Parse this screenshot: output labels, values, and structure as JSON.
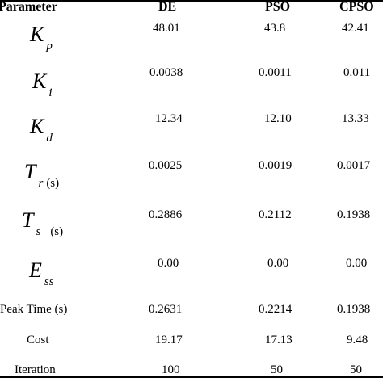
{
  "headers": {
    "parameter": "Parameter",
    "de": "DE",
    "pso": "PSO",
    "cpso": "CPSO"
  },
  "rows": [
    {
      "symbol": "K",
      "sub": "p",
      "unit": "",
      "de": "48.01",
      "pso": "43.8",
      "cpso": "42.41"
    },
    {
      "symbol": "K",
      "sub": "i",
      "unit": "",
      "de": "0.0038",
      "pso": "0.0011",
      "cpso": "0.011"
    },
    {
      "symbol": "K",
      "sub": "d",
      "unit": "",
      "de": "12.34",
      "pso": "12.10",
      "cpso": "13.33"
    },
    {
      "symbol": "T",
      "sub": "r",
      "unit": "(s)",
      "de": "0.0025",
      "pso": "0.0019",
      "cpso": "0.0017"
    },
    {
      "symbol": "T",
      "sub": "s",
      "unit": "(s)",
      "de": "0.2886",
      "pso": "0.2112",
      "cpso": "0.1938"
    },
    {
      "symbol": "E",
      "sub": "ss",
      "unit": "",
      "de": "0.00",
      "pso": "0.00",
      "cpso": "0.00"
    },
    {
      "label": "Peak Time (s)",
      "de": "0.2631",
      "pso": "0.2214",
      "cpso": "0.1938"
    },
    {
      "label": "Cost",
      "de": "19.17",
      "pso": "17.13",
      "cpso": "9.48"
    },
    {
      "label": "Iteration",
      "de": "100",
      "pso": "50",
      "cpso": "50"
    }
  ]
}
